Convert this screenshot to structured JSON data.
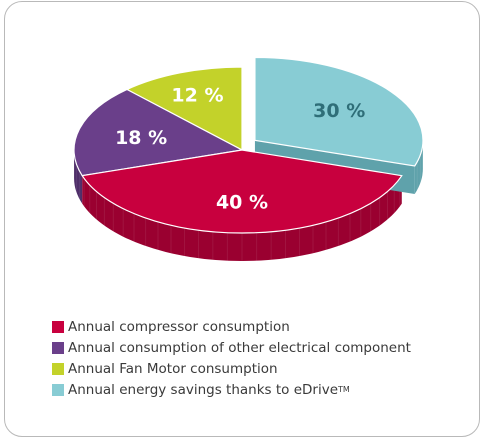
{
  "chart_data": {
    "type": "pie",
    "title": "",
    "series": [
      {
        "name": "Annual compressor consumption",
        "value": 40,
        "label": "40 %",
        "color": "#c8003e",
        "side_color": "#9a0030",
        "label_color": "#ffffff"
      },
      {
        "name": "Annual consumption of other electrical component",
        "value": 18,
        "label": "18 %",
        "color": "#6a3f8a",
        "side_color": "#4f2e69",
        "label_color": "#ffffff"
      },
      {
        "name": "Annual Fan Motor consumption",
        "value": 12,
        "label": "12 %",
        "color": "#c3d22a",
        "side_color": "#97a31e",
        "label_color": "#ffffff"
      },
      {
        "name": "Annual energy savings thanks to eDrive",
        "name_suffix": "TM",
        "value": 30,
        "label": "30 %",
        "color": "#88ccd4",
        "side_color": "#5fa2ab",
        "label_color": "#2f6e78",
        "exploded": true
      }
    ],
    "legend_position": "bottom-left"
  }
}
